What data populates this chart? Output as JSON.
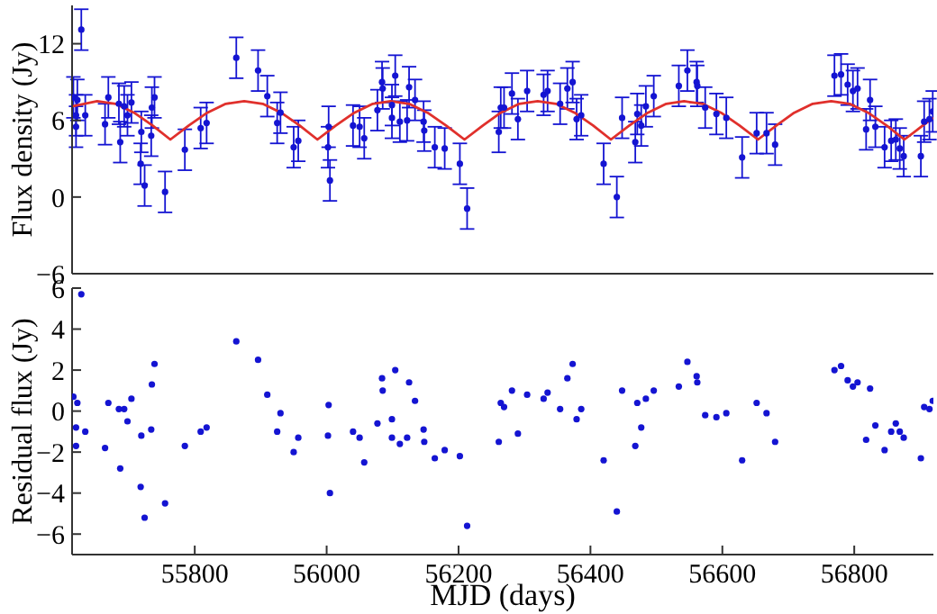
{
  "chart_data": [
    {
      "type": "scatter",
      "ylabel": "Flux density (Jy)",
      "xlim": [
        55614,
        56920
      ],
      "xticks": [
        55800,
        56000,
        56200,
        56400,
        56600,
        56800
      ],
      "ylim": [
        -6,
        15
      ],
      "yticks": [
        -6,
        0,
        6,
        12
      ],
      "tick_labels": "y",
      "grid": false,
      "legend": false,
      "marker": "circle",
      "series": [
        {
          "type": "scatter",
          "color": "#1414d2",
          "x": [
            55628,
            55616,
            55622,
            55620,
            55620,
            55634,
            55664,
            55669,
            55685,
            55693,
            55687,
            55698,
            55704,
            55719,
            55718,
            55724,
            55734,
            55735,
            55739,
            55755,
            55785,
            55809,
            55818,
            55863,
            55896,
            55910,
            55930,
            55925,
            55950,
            55957,
            56002,
            56003,
            56005,
            56040,
            56050,
            56057,
            56077,
            56084,
            56085,
            56099,
            56099,
            56104,
            56111,
            56122,
            56125,
            56134,
            56147,
            56148,
            56164,
            56179,
            56202,
            56213,
            56261,
            56264,
            56269,
            56281,
            56290,
            56304,
            56329,
            56335,
            56354,
            56365,
            56373,
            56379,
            56386,
            56420,
            56440,
            56448,
            56468,
            56471,
            56477,
            56484,
            56496,
            56534,
            56547,
            56561,
            56562,
            56574,
            56591,
            56606,
            56630,
            56652,
            56667,
            56680,
            56770,
            56780,
            56790,
            56798,
            56805,
            56824,
            56818,
            56832,
            56846,
            56856,
            56863,
            56869,
            56875,
            56901,
            56906,
            56914,
            56919
          ],
          "values": [
            13.1,
            7.8,
            7.6,
            6.4,
            5.5,
            6.4,
            5.7,
            7.8,
            7.3,
            7.1,
            4.3,
            6.4,
            7.4,
            5.1,
            2.6,
            0.9,
            4.8,
            7.0,
            7.8,
            0.4,
            3.7,
            5.4,
            5.8,
            10.9,
            9.9,
            7.9,
            6.6,
            5.8,
            3.9,
            4.4,
            3.9,
            5.5,
            1.3,
            5.6,
            5.5,
            4.6,
            6.8,
            9.0,
            8.5,
            7.2,
            6.2,
            9.5,
            5.9,
            6.0,
            8.6,
            7.6,
            5.9,
            5.2,
            3.9,
            3.8,
            2.6,
            -0.9,
            5.1,
            7.0,
            7.0,
            8.1,
            6.1,
            8.3,
            8.0,
            8.3,
            7.3,
            8.5,
            9.0,
            6.1,
            6.4,
            2.6,
            0.0,
            6.2,
            4.3,
            6.5,
            5.6,
            7.1,
            7.9,
            8.7,
            9.9,
            9.0,
            8.7,
            7.0,
            6.5,
            6.2,
            3.1,
            5.0,
            5.0,
            4.1,
            9.5,
            9.6,
            8.8,
            8.3,
            8.5,
            7.6,
            5.3,
            5.5,
            3.9,
            4.4,
            4.5,
            3.8,
            3.2,
            3.2,
            5.9,
            6.1,
            6.7
          ],
          "errors": [
            1.6,
            1.6,
            1.6,
            1.6,
            1.6,
            1.6,
            1.6,
            1.6,
            1.6,
            1.6,
            1.6,
            1.6,
            1.6,
            1.6,
            1.6,
            1.6,
            1.6,
            1.6,
            1.6,
            1.6,
            1.6,
            1.6,
            1.6,
            1.6,
            1.6,
            1.6,
            1.6,
            1.6,
            1.6,
            1.6,
            1.6,
            1.6,
            1.6,
            1.6,
            1.6,
            1.6,
            1.6,
            1.6,
            1.6,
            1.6,
            1.6,
            1.6,
            1.6,
            1.6,
            1.6,
            1.6,
            1.6,
            1.6,
            1.6,
            1.6,
            1.6,
            1.6,
            1.6,
            1.6,
            1.6,
            1.6,
            1.6,
            1.6,
            1.6,
            1.6,
            1.6,
            1.6,
            1.6,
            1.6,
            1.6,
            1.6,
            1.6,
            1.6,
            1.6,
            1.6,
            1.6,
            1.6,
            1.6,
            1.6,
            1.6,
            1.6,
            1.6,
            1.6,
            1.6,
            1.6,
            1.6,
            1.6,
            1.6,
            1.6,
            1.6,
            1.6,
            1.6,
            1.6,
            1.6,
            1.6,
            1.6,
            1.6,
            1.6,
            1.6,
            1.6,
            1.6,
            1.6,
            1.6,
            1.6,
            1.6,
            1.6
          ]
        },
        {
          "type": "line",
          "color": "#e0302c",
          "line_style": "solid",
          "marker": "none",
          "x": [
            55614,
            55652,
            55680,
            55708,
            55736,
            55763,
            55791,
            55819,
            55847,
            55875,
            55903,
            55931,
            55959,
            55986,
            56014,
            56042,
            56070,
            56097,
            56125,
            56153,
            56181,
            56209,
            56237,
            56264,
            56292,
            56320,
            56348,
            56376,
            56404,
            56431,
            56459,
            56487,
            56515,
            56542,
            56570,
            56598,
            56626,
            56654,
            56682,
            56709,
            56737,
            56765,
            56793,
            56821,
            56849,
            56876,
            56904,
            56920
          ],
          "values": [
            7.1,
            7.5,
            7.3,
            6.6,
            5.6,
            4.5,
            5.6,
            6.6,
            7.3,
            7.5,
            7.3,
            6.6,
            5.6,
            4.5,
            5.6,
            6.6,
            7.3,
            7.5,
            7.3,
            6.6,
            5.6,
            4.5,
            5.6,
            6.6,
            7.3,
            7.5,
            7.3,
            6.6,
            5.6,
            4.5,
            5.6,
            6.6,
            7.3,
            7.5,
            7.3,
            6.6,
            5.6,
            4.5,
            5.6,
            6.6,
            7.3,
            7.5,
            7.3,
            6.6,
            5.6,
            4.5,
            5.6,
            6.2
          ]
        }
      ]
    },
    {
      "type": "scatter",
      "ylabel": "Residual flux (Jy)",
      "xlabel": "MJD (days)",
      "xlim": [
        55614,
        56920
      ],
      "xticks": [
        55800,
        56000,
        56200,
        56400,
        56600,
        56800
      ],
      "ylim": [
        -7,
        6
      ],
      "yticks": [
        -6,
        -4,
        -2,
        0,
        2,
        4,
        6
      ],
      "grid": false,
      "legend": false,
      "marker": "circle",
      "series": [
        {
          "type": "scatter",
          "color": "#1414d2",
          "x": [
            55628,
            55616,
            55622,
            55620,
            55620,
            55634,
            55664,
            55669,
            55685,
            55693,
            55687,
            55698,
            55704,
            55719,
            55718,
            55724,
            55734,
            55735,
            55739,
            55755,
            55785,
            55809,
            55818,
            55863,
            55896,
            55910,
            55930,
            55925,
            55950,
            55957,
            56002,
            56003,
            56005,
            56040,
            56050,
            56057,
            56077,
            56084,
            56085,
            56099,
            56099,
            56104,
            56111,
            56122,
            56125,
            56134,
            56147,
            56148,
            56164,
            56179,
            56202,
            56213,
            56261,
            56264,
            56269,
            56281,
            56290,
            56304,
            56329,
            56335,
            56354,
            56365,
            56373,
            56379,
            56386,
            56420,
            56440,
            56448,
            56468,
            56471,
            56477,
            56484,
            56496,
            56534,
            56547,
            56561,
            56562,
            56574,
            56591,
            56606,
            56630,
            56652,
            56667,
            56680,
            56770,
            56780,
            56790,
            56798,
            56805,
            56824,
            56818,
            56832,
            56846,
            56856,
            56863,
            56869,
            56875,
            56901,
            56906,
            56914,
            56919
          ],
          "values": [
            5.7,
            0.7,
            0.4,
            -0.8,
            -1.7,
            -1.0,
            -1.8,
            0.4,
            0.1,
            0.1,
            -2.8,
            -0.5,
            0.6,
            -1.2,
            -3.7,
            -5.2,
            -0.9,
            1.3,
            2.3,
            -4.5,
            -1.7,
            -1.0,
            -0.8,
            3.4,
            2.5,
            0.8,
            -0.1,
            -1.0,
            -2.0,
            -1.3,
            -1.2,
            0.3,
            -4.0,
            -1.0,
            -1.3,
            -2.5,
            -0.6,
            1.6,
            1.0,
            -0.4,
            -1.3,
            2.0,
            -1.6,
            -1.3,
            1.4,
            0.5,
            -0.9,
            -1.5,
            -2.3,
            -1.9,
            -2.2,
            -5.6,
            -1.5,
            0.4,
            0.2,
            1.0,
            -1.1,
            0.8,
            0.6,
            0.9,
            0.1,
            1.6,
            2.3,
            -0.4,
            0.1,
            -2.4,
            -4.9,
            1.0,
            -1.7,
            0.4,
            -0.8,
            0.6,
            1.0,
            1.2,
            2.4,
            1.7,
            1.4,
            -0.2,
            -0.3,
            -0.1,
            -2.4,
            0.4,
            -0.1,
            -1.5,
            2.0,
            2.2,
            1.5,
            1.2,
            1.4,
            1.1,
            -1.4,
            -0.7,
            -1.9,
            -1.0,
            -0.6,
            -1.0,
            -1.3,
            -2.3,
            0.2,
            0.1,
            0.5
          ]
        }
      ]
    }
  ]
}
